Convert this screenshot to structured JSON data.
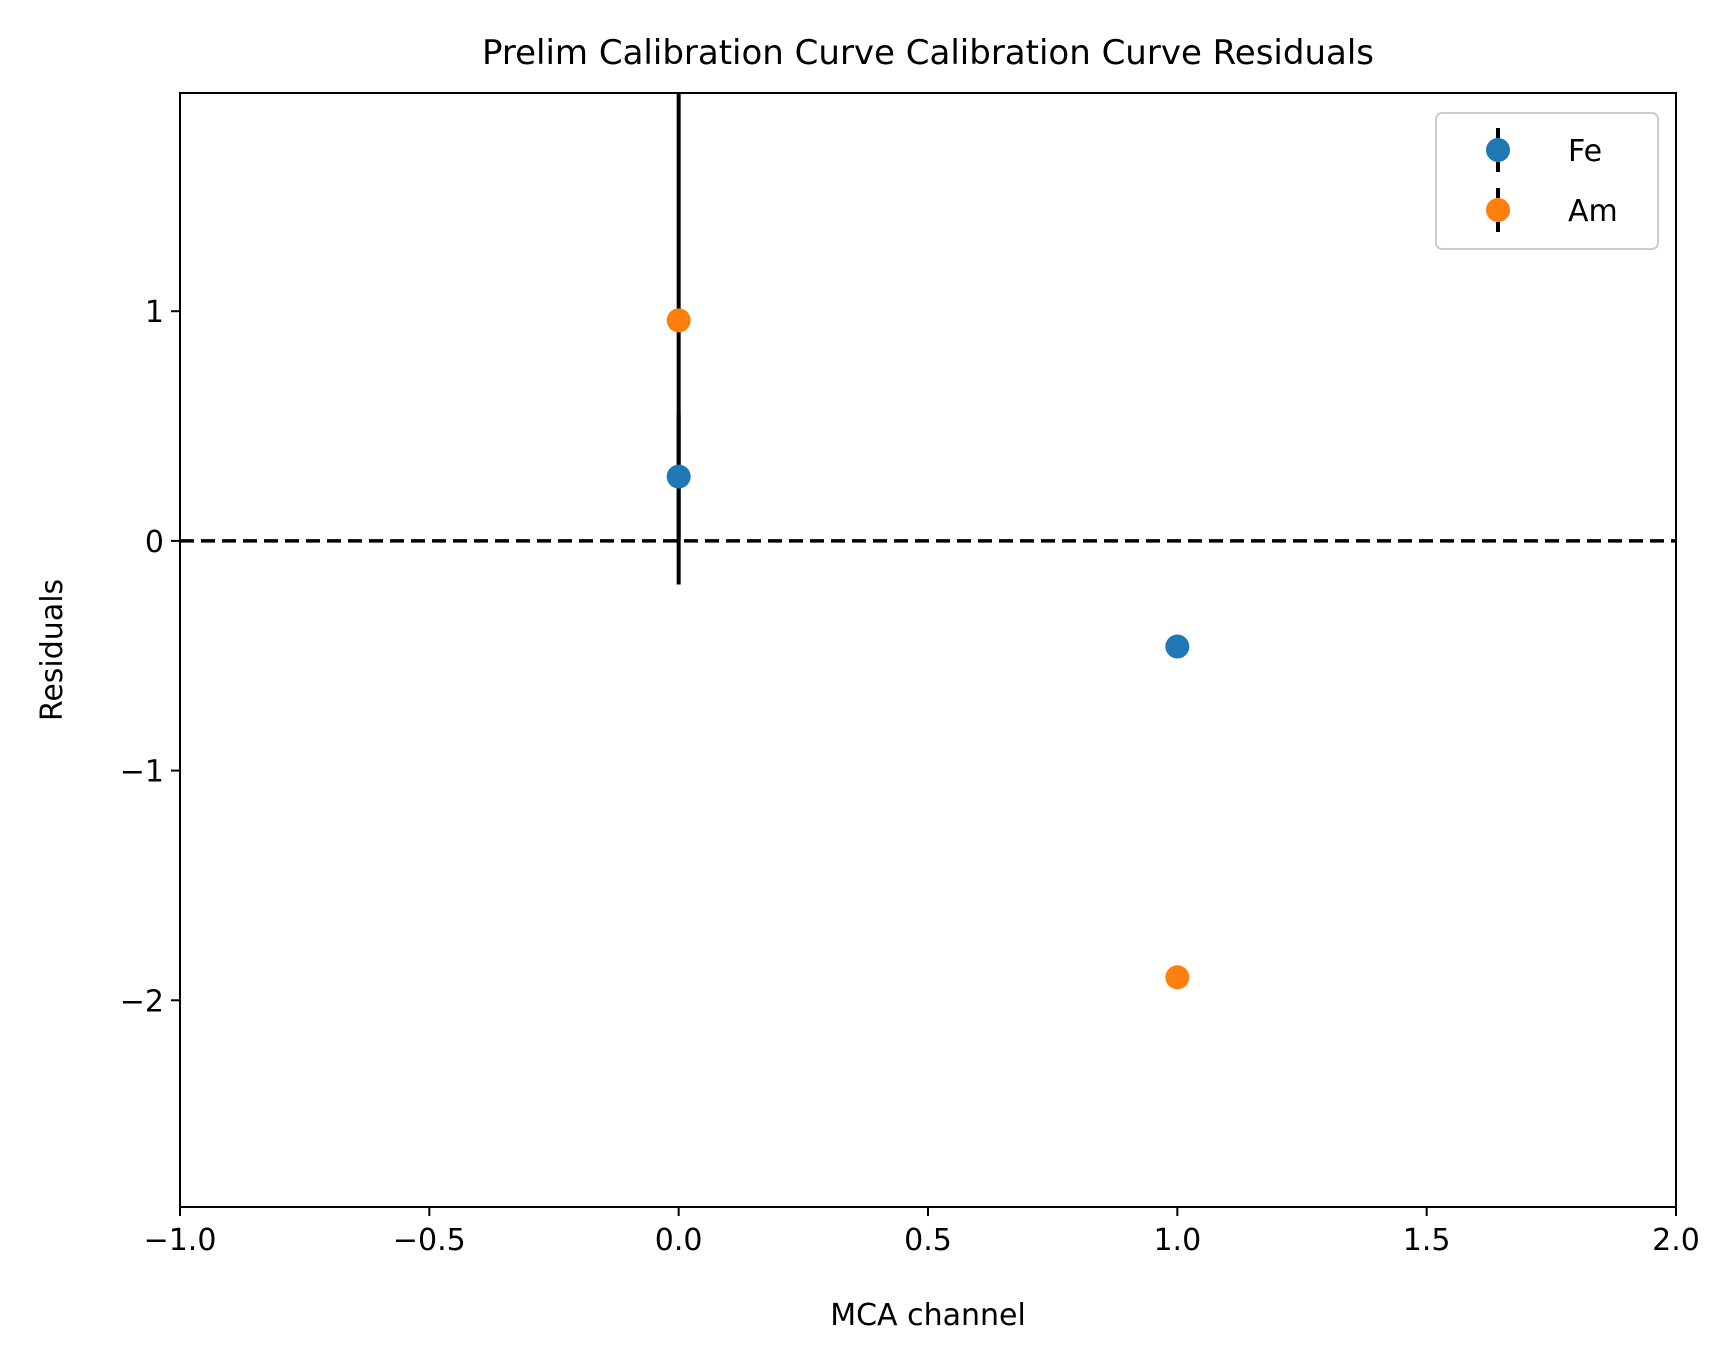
{
  "chart_data": {
    "type": "scatter",
    "title": "Prelim Calibration Curve Calibration Curve Residuals",
    "xlabel": "MCA channel",
    "ylabel": "Residuals",
    "xlim": [
      -1.0,
      2.0
    ],
    "ylim": [
      -2.9,
      1.95
    ],
    "x_ticks": [
      -1.0,
      -0.5,
      0.0,
      0.5,
      1.0,
      1.5,
      2.0
    ],
    "x_tick_labels": [
      "−1.0",
      "−0.5",
      "0.0",
      "0.5",
      "1.0",
      "1.5",
      "2.0"
    ],
    "y_ticks": [
      -2,
      -1,
      0,
      1
    ],
    "y_tick_labels": [
      "−2",
      "−1",
      "0",
      "1"
    ],
    "grid": false,
    "legend_position": "top-right",
    "reference_line": {
      "y": 0,
      "style": "dashed",
      "color": "#000000"
    },
    "series": [
      {
        "name": "Fe",
        "color": "#1f77b4",
        "x": [
          0,
          1
        ],
        "y": [
          0.28,
          -0.46
        ],
        "yerr": [
          0.27,
          0.0
        ]
      },
      {
        "name": "Am",
        "color": "#ff7f0e",
        "x": [
          0,
          1
        ],
        "y": [
          0.96,
          -1.9
        ],
        "yerr": [
          1.15,
          0.0
        ]
      }
    ]
  }
}
